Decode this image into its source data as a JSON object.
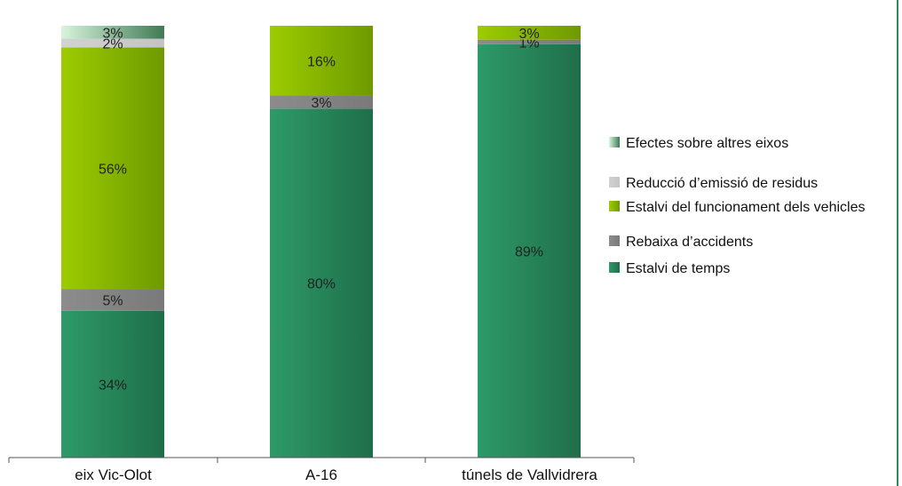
{
  "chart_data": {
    "type": "bar",
    "stacked": true,
    "percent_stacked": true,
    "categories": [
      "eix Vic-Olot",
      "A-16",
      "túnels de Vallvidrera"
    ],
    "series": [
      {
        "key": "temps",
        "name": "Estalvi de temps",
        "values": [
          34,
          80,
          89
        ],
        "labels": [
          "34%",
          "80%",
          "89%"
        ],
        "color": "#2e9a68",
        "color_dark": "#1f6e4a"
      },
      {
        "key": "accidents",
        "name": "Rebaixa d’accidents",
        "values": [
          5,
          3,
          1
        ],
        "labels": [
          "5%",
          "3%",
          "1%"
        ],
        "color": "#8c8c8c",
        "color_dark": "#7a7a7a"
      },
      {
        "key": "vehicles",
        "name": "Estalvi del funcionament dels vehicles",
        "values": [
          56,
          16,
          3
        ],
        "labels": [
          "56%",
          "16%",
          "3%"
        ],
        "color": "#9ccc00",
        "color_dark": "#6e9a00"
      },
      {
        "key": "residus",
        "name": "Reducció d’emissió de residus",
        "values": [
          2,
          0,
          0
        ],
        "labels": [
          "2%",
          "",
          ""
        ],
        "color": "#d2d2d2",
        "color_dark": "#c4c4c4"
      },
      {
        "key": "altres",
        "name": "Efectes sobre altres eixos",
        "values": [
          3,
          0,
          0
        ],
        "labels": [
          "3%",
          "",
          ""
        ],
        "color": "#d8f5dc",
        "color_dark": "#3f7a55"
      }
    ],
    "legend_order": [
      "altres",
      "residus",
      "vehicles",
      "accidents",
      "temps"
    ],
    "legend_position": "right",
    "ylim": [
      0,
      100
    ],
    "grid": false
  }
}
